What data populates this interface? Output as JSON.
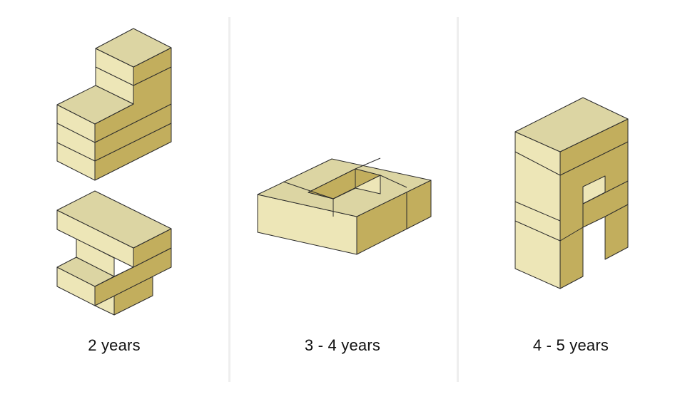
{
  "colors": {
    "top_face": "#dcd5a3",
    "front_face": "#ede6b7",
    "side_face": "#c2ae5d",
    "outline": "#2b2b2b",
    "divider": "#eeeeee",
    "background": "#ffffff"
  },
  "panels": [
    {
      "caption": "2 years"
    },
    {
      "caption": "3 - 4 years"
    },
    {
      "caption": "4 - 5 years"
    }
  ]
}
